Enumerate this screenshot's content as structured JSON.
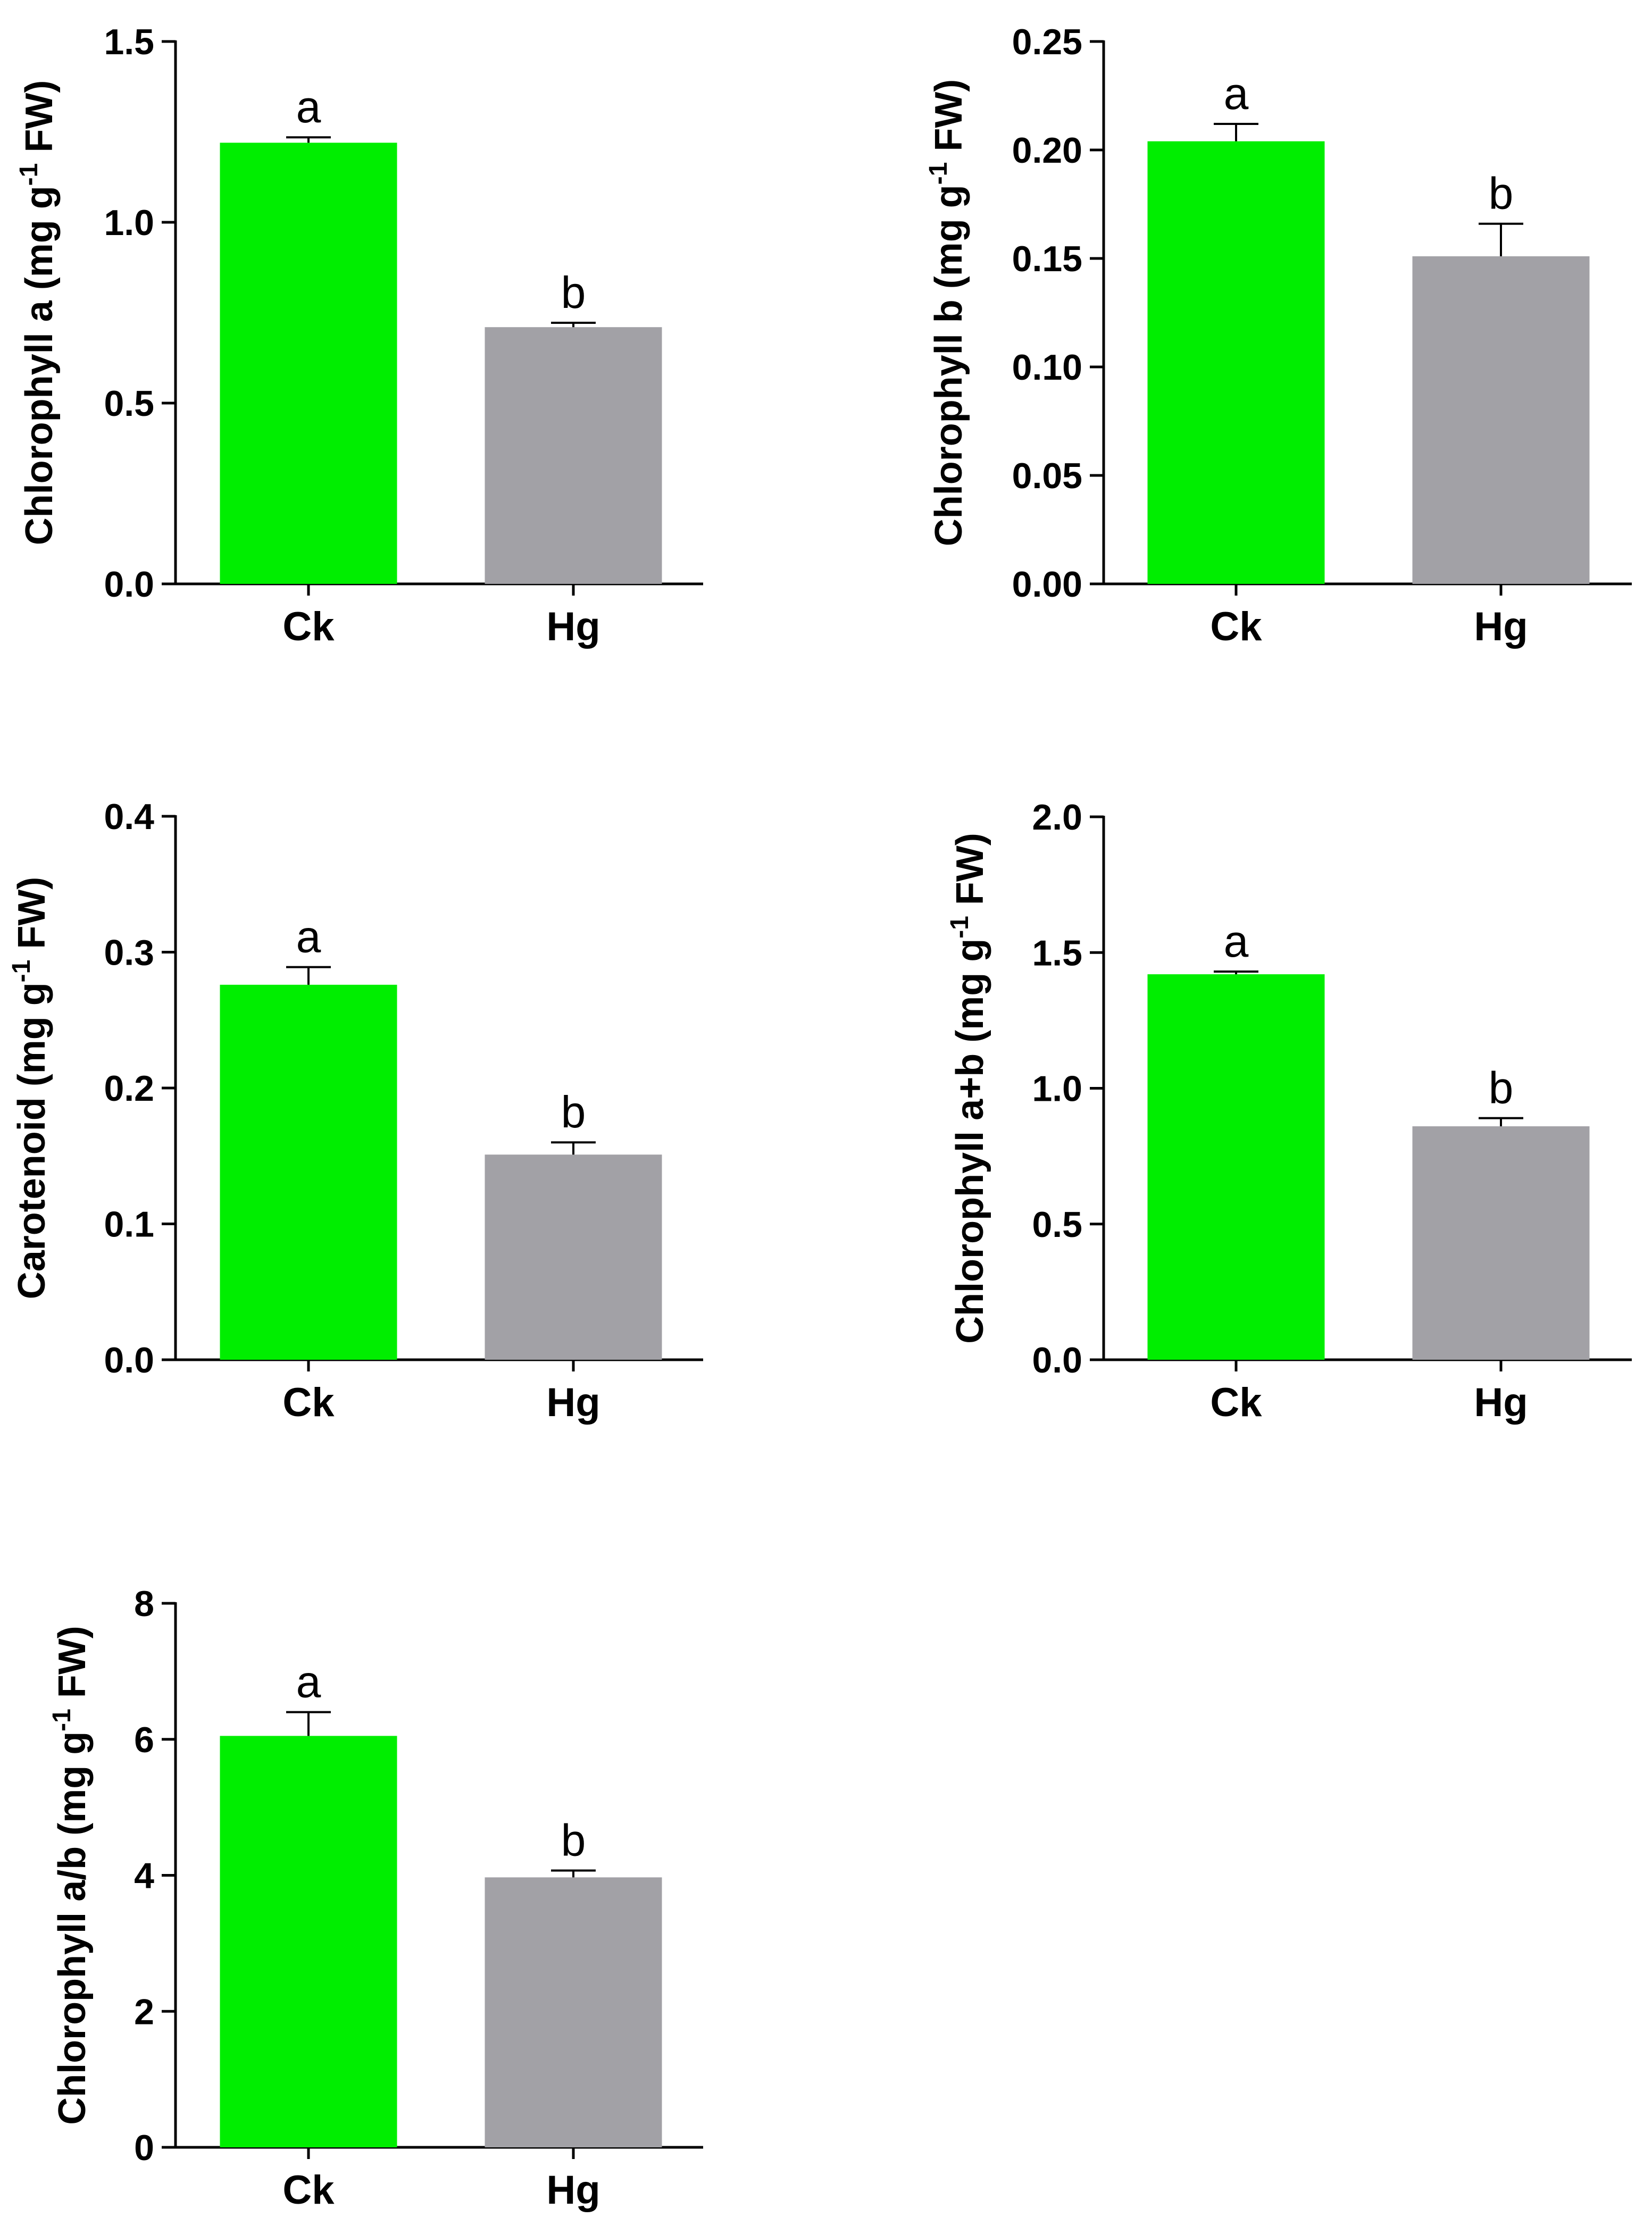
{
  "colors": {
    "control": "#00ee00",
    "treatment": "#a2a1a6",
    "axis": "#000000"
  },
  "chart_data": [
    {
      "type": "bar",
      "categories": [
        "Ck",
        "Hg"
      ],
      "values": [
        1.22,
        0.71
      ],
      "errors": [
        0.015,
        0.012
      ],
      "significance": [
        "a",
        "b"
      ],
      "ylabel_main": "Chlorophyll a (mg g",
      "ylabel_sup": "-1",
      "ylabel_tail": " FW)",
      "ylim": [
        0,
        1.5
      ],
      "yticks": [
        0.0,
        0.5,
        1.0,
        1.5
      ],
      "ytick_labels": [
        "0.0",
        "0.5",
        "1.0",
        "1.5"
      ]
    },
    {
      "type": "bar",
      "categories": [
        "Ck",
        "Hg"
      ],
      "values": [
        0.204,
        0.151
      ],
      "errors": [
        0.008,
        0.015
      ],
      "significance": [
        "a",
        "b"
      ],
      "ylabel_main": "Chlorophyll b (mg g",
      "ylabel_sup": "-1",
      "ylabel_tail": " FW)",
      "ylim": [
        0,
        0.25
      ],
      "yticks": [
        0.0,
        0.05,
        0.1,
        0.15,
        0.2,
        0.25
      ],
      "ytick_labels": [
        "0.00",
        "0.05",
        "0.10",
        "0.15",
        "0.20",
        "0.25"
      ]
    },
    {
      "type": "bar",
      "categories": [
        "Ck",
        "Hg"
      ],
      "values": [
        0.276,
        0.151
      ],
      "errors": [
        0.013,
        0.009
      ],
      "significance": [
        "a",
        "b"
      ],
      "ylabel_main": "Carotenoid (mg g",
      "ylabel_sup": "-1",
      "ylabel_tail": " FW)",
      "ylim": [
        0,
        0.4
      ],
      "yticks": [
        0.0,
        0.1,
        0.2,
        0.3,
        0.4
      ],
      "ytick_labels": [
        "0.0",
        "0.1",
        "0.2",
        "0.3",
        "0.4"
      ]
    },
    {
      "type": "bar",
      "categories": [
        "Ck",
        "Hg"
      ],
      "values": [
        1.42,
        0.86
      ],
      "errors": [
        0.01,
        0.03
      ],
      "significance": [
        "a",
        "b"
      ],
      "ylabel_main": "Chlorophyll a+b (mg g",
      "ylabel_sup": "-1",
      "ylabel_tail": " FW)",
      "ylim": [
        0,
        2.0
      ],
      "yticks": [
        0.0,
        0.5,
        1.0,
        1.5,
        2.0
      ],
      "ytick_labels": [
        "0.0",
        "0.5",
        "1.0",
        "1.5",
        "2.0"
      ]
    },
    {
      "type": "bar",
      "categories": [
        "Ck",
        "Hg"
      ],
      "values": [
        6.05,
        3.97
      ],
      "errors": [
        0.35,
        0.1
      ],
      "significance": [
        "a",
        "b"
      ],
      "ylabel_main": "Chlorophyll a/b (mg g",
      "ylabel_sup": "-1",
      "ylabel_tail": " FW)",
      "ylim": [
        0,
        8
      ],
      "yticks": [
        0,
        2,
        4,
        6,
        8
      ],
      "ytick_labels": [
        "0",
        "2",
        "4",
        "6",
        "8"
      ]
    }
  ]
}
